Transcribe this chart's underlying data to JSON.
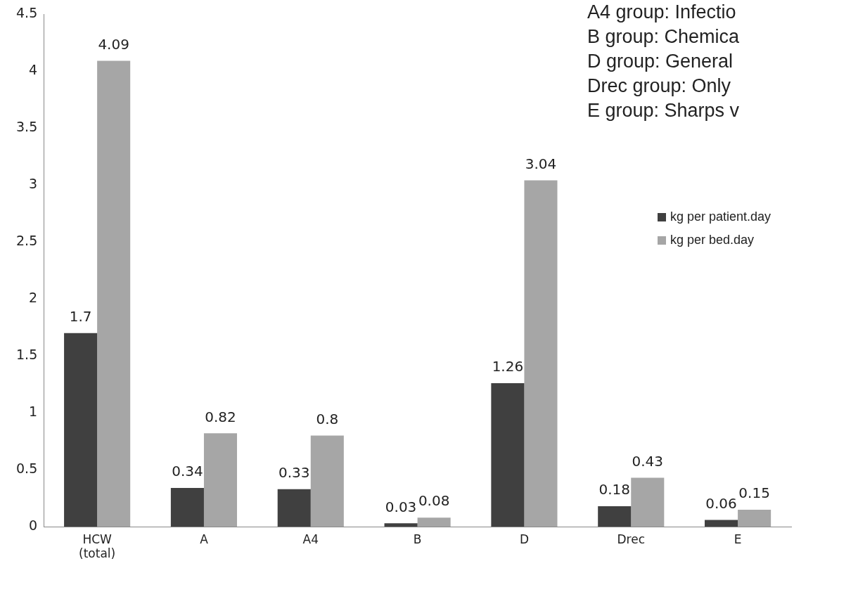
{
  "chart_data": {
    "type": "bar",
    "categories": [
      "HCW (total)",
      "A",
      "A4",
      "B",
      "D",
      "Drec",
      "E"
    ],
    "series": [
      {
        "name": "kg per patient.day",
        "color": "#404040",
        "values": [
          1.7,
          0.34,
          0.33,
          0.03,
          1.26,
          0.18,
          0.06
        ]
      },
      {
        "name": "kg per bed.day",
        "color": "#a6a6a6",
        "values": [
          4.09,
          0.82,
          0.8,
          0.08,
          3.04,
          0.43,
          0.15
        ]
      }
    ],
    "ylim": [
      0,
      4.5
    ],
    "yticks": [
      0,
      0.5,
      1,
      1.5,
      2,
      2.5,
      3,
      3.5,
      4,
      4.5
    ],
    "grid": false,
    "legend": "top right",
    "data_labels": true,
    "annotations": [
      "A4 group: Infectio",
      "B group: Chemica",
      "D group: General",
      "Drec group: Only",
      "E group: Sharps v"
    ]
  }
}
